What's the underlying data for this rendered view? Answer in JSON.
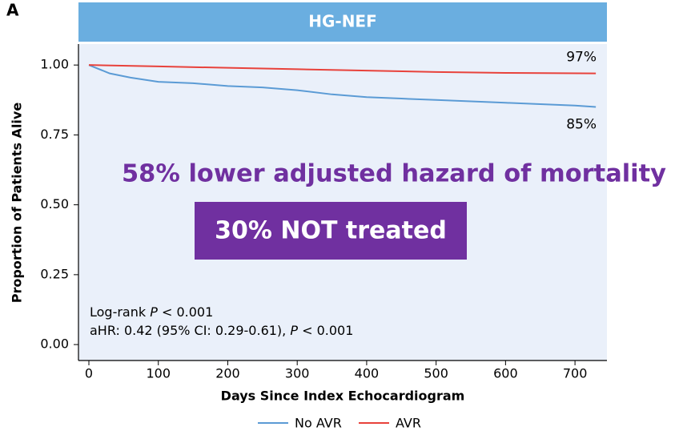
{
  "chart_data": {
    "type": "line",
    "panel_label": "A",
    "title": "HG-NEF",
    "x_label": "Days Since Index Echocardiogram",
    "y_label": "Proportion of Patients Alive",
    "xlim": [
      -15,
      746
    ],
    "ylim": [
      -0.057,
      1.075
    ],
    "xticks": [
      0,
      100,
      200,
      300,
      400,
      500,
      600,
      700
    ],
    "yticks": [
      {
        "value": 0,
        "label": "0.00"
      },
      {
        "value": 0.25,
        "label": "0.25"
      },
      {
        "value": 0.5,
        "label": "0.50"
      },
      {
        "value": 0.75,
        "label": "0.75"
      },
      {
        "value": 1,
        "label": "1.00"
      }
    ],
    "series": [
      {
        "name": "No AVR",
        "color": "#5b9bd5",
        "x": [
          0,
          10,
          30,
          60,
          100,
          150,
          200,
          250,
          300,
          350,
          400,
          450,
          500,
          550,
          600,
          650,
          700,
          730
        ],
        "values": [
          1.0,
          0.99,
          0.97,
          0.955,
          0.94,
          0.935,
          0.925,
          0.92,
          0.91,
          0.895,
          0.885,
          0.88,
          0.875,
          0.87,
          0.865,
          0.86,
          0.855,
          0.85
        ]
      },
      {
        "name": "AVR",
        "color": "#e8423b",
        "x": [
          0,
          100,
          200,
          300,
          400,
          500,
          600,
          730
        ],
        "values": [
          1.0,
          0.995,
          0.99,
          0.985,
          0.98,
          0.975,
          0.972,
          0.97
        ]
      }
    ],
    "end_labels": [
      "85%",
      "97%"
    ],
    "headline": "58% lower adjusted hazard of mortality",
    "callout": "30% NOT treated",
    "stats": [
      [
        "Log-rank ",
        "P",
        " < 0.001"
      ],
      [
        "aHR: 0.42 (95% CI: 0.29-0.61), ",
        "P",
        " < 0.001"
      ]
    ]
  }
}
